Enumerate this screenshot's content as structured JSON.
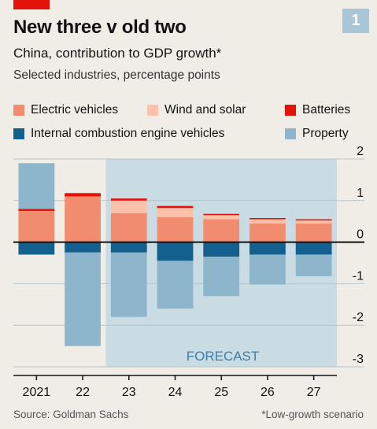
{
  "header": {
    "title": "New three v old two",
    "subtitle": "China, contribution to GDP growth*",
    "units": "Selected industries, percentage points",
    "badge": "1"
  },
  "forecast_label": "FORECAST",
  "footer": {
    "source": "Source: Goldman Sachs",
    "note": "*Low-growth scenario"
  },
  "colors": {
    "ev": "#F28C6E",
    "wind_solar": "#FBC1A9",
    "batteries": "#E3120B",
    "ice": "#13608F",
    "property": "#8DB6CD",
    "forecast_band": "#C9DCE4",
    "accent": "#E3120B"
  },
  "chart_data": {
    "type": "bar",
    "stacked": true,
    "categories": [
      "2021",
      "22",
      "23",
      "24",
      "25",
      "26",
      "27"
    ],
    "ylim": [
      -3,
      2
    ],
    "yticks": [
      2,
      1,
      0,
      -1,
      -2,
      -3
    ],
    "forecast_from": "23",
    "legend_position": "top",
    "series": [
      {
        "key": "ev",
        "name": "Electric vehicles",
        "values": [
          0.75,
          1.1,
          0.7,
          0.6,
          0.55,
          0.45,
          0.45
        ]
      },
      {
        "key": "wind_solar",
        "name": "Wind and solar",
        "values": [
          0.0,
          0.0,
          0.3,
          0.22,
          0.1,
          0.1,
          0.07
        ]
      },
      {
        "key": "batteries",
        "name": "Batteries",
        "values": [
          0.05,
          0.08,
          0.05,
          0.05,
          0.03,
          0.03,
          0.03
        ]
      },
      {
        "key": "ice",
        "name": "Internal combustion engine vehicles",
        "values": [
          -0.3,
          -0.25,
          -0.25,
          -0.45,
          -0.35,
          -0.3,
          -0.3
        ]
      },
      {
        "key": "property",
        "name": "Property",
        "values": [
          1.1,
          -2.25,
          -1.55,
          -1.15,
          -0.95,
          -0.72,
          -0.52
        ]
      }
    ]
  }
}
